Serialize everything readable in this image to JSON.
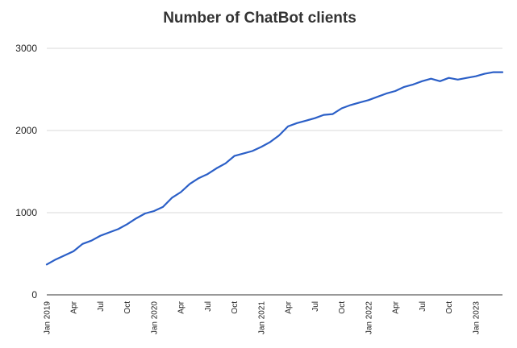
{
  "chart_data": {
    "type": "line",
    "title": "Number of ChatBot clients",
    "xlabel": "",
    "ylabel": "",
    "ylim": [
      0,
      3000
    ],
    "yticks": [
      "0",
      "1000",
      "2000",
      "3000"
    ],
    "grid": true,
    "legend": "none",
    "xtick_labels": [
      {
        "label": "Jan 2019",
        "month_index": 0
      },
      {
        "label": "Apr",
        "month_index": 3
      },
      {
        "label": "Jul",
        "month_index": 6
      },
      {
        "label": "Oct",
        "month_index": 9
      },
      {
        "label": "Jan 2020",
        "month_index": 12
      },
      {
        "label": "Apr",
        "month_index": 15
      },
      {
        "label": "Jul",
        "month_index": 18
      },
      {
        "label": "Oct",
        "month_index": 21
      },
      {
        "label": "Jan 2021",
        "month_index": 24
      },
      {
        "label": "Apr",
        "month_index": 27
      },
      {
        "label": "Jul",
        "month_index": 30
      },
      {
        "label": "Oct",
        "month_index": 33
      },
      {
        "label": "Jan 2022",
        "month_index": 36
      },
      {
        "label": "Apr",
        "month_index": 39
      },
      {
        "label": "Jul",
        "month_index": 42
      },
      {
        "label": "Oct",
        "month_index": 45
      },
      {
        "label": "Jan 2023",
        "month_index": 48
      }
    ],
    "x": [
      "2019-01",
      "2019-02",
      "2019-03",
      "2019-04",
      "2019-05",
      "2019-06",
      "2019-07",
      "2019-08",
      "2019-09",
      "2019-10",
      "2019-11",
      "2019-12",
      "2020-01",
      "2020-02",
      "2020-03",
      "2020-04",
      "2020-05",
      "2020-06",
      "2020-07",
      "2020-08",
      "2020-09",
      "2020-10",
      "2020-11",
      "2020-12",
      "2021-01",
      "2021-02",
      "2021-03",
      "2021-04",
      "2021-05",
      "2021-06",
      "2021-07",
      "2021-08",
      "2021-09",
      "2021-10",
      "2021-11",
      "2021-12",
      "2022-01",
      "2022-02",
      "2022-03",
      "2022-04",
      "2022-05",
      "2022-06",
      "2022-07",
      "2022-08",
      "2022-09",
      "2022-10",
      "2022-11",
      "2022-12",
      "2023-01",
      "2023-02",
      "2023-03",
      "2023-04"
    ],
    "series": [
      {
        "color": "#2b5fc7",
        "values": [
          370,
          430,
          480,
          530,
          620,
          660,
          720,
          760,
          800,
          860,
          930,
          990,
          1020,
          1070,
          1180,
          1250,
          1350,
          1420,
          1470,
          1540,
          1600,
          1690,
          1720,
          1750,
          1800,
          1860,
          1940,
          2050,
          2090,
          2120,
          2150,
          2190,
          2200,
          2270,
          2310,
          2340,
          2370,
          2410,
          2450,
          2480,
          2530,
          2560,
          2600,
          2630,
          2600,
          2640,
          2620,
          2640,
          2660,
          2690,
          2710,
          2710
        ]
      }
    ]
  }
}
